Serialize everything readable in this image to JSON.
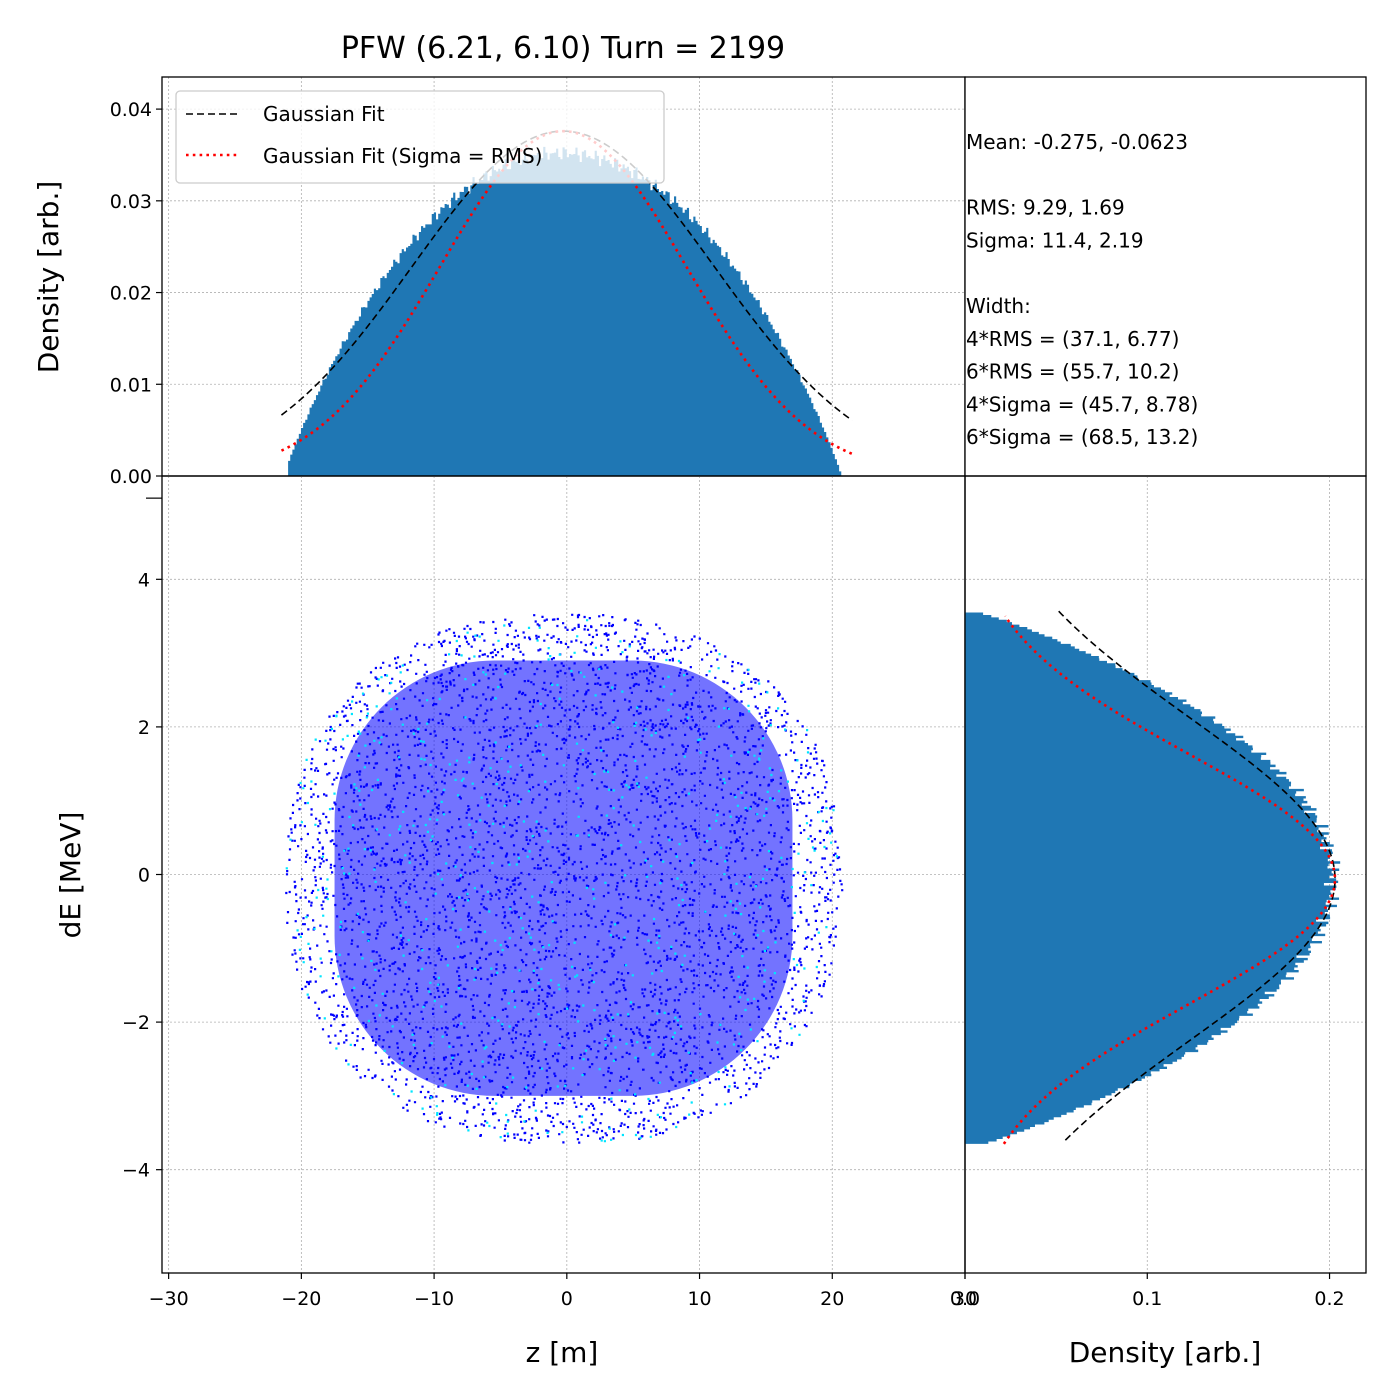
{
  "chart_data": {
    "type": "scatter",
    "title": "PFW (6.21, 6.10) Turn = 2199",
    "colors": {
      "histogram": "#1f77b4",
      "scatter": "#0000ff",
      "scatter_dense": "#00e5ff",
      "gauss_fit": "#000000",
      "gauss_rms": "#ff0000",
      "grid": "#b0b0b0"
    },
    "grid": true,
    "top_hist": {
      "ylabel": "Density [arb.]",
      "ylim": [
        0,
        0.0435
      ],
      "yticks": [
        "0.00",
        "0.01",
        "0.02",
        "0.03",
        "0.04"
      ],
      "ytick_values": [
        0,
        0.01,
        0.02,
        0.03,
        0.04
      ],
      "bins_range": [
        -21,
        21
      ],
      "legend": {
        "placement": "upper-left",
        "entries": [
          "Gaussian Fit",
          "Gaussian Fit (Sigma = RMS)"
        ]
      },
      "fit": {
        "mean": -0.275,
        "sigma": 11.4,
        "amplitude": 0.0376
      },
      "fit_rms": {
        "mean": -0.275,
        "sigma": 9.29,
        "amplitude": 0.0376
      },
      "fit_range": [
        -21.5,
        21.5
      ]
    },
    "main": {
      "xlabel": "z [m]",
      "ylabel": "dE [MeV]",
      "xlim": [
        -30.5,
        30
      ],
      "ylim": [
        -5.4,
        5.4
      ],
      "xticks": [
        "−30",
        "−20",
        "−10",
        "0",
        "10",
        "20",
        "30"
      ],
      "xtick_values": [
        -30,
        -20,
        -10,
        0,
        10,
        20,
        30
      ],
      "yticks": [
        "−4",
        "−2",
        "0",
        "2",
        "4"
      ],
      "ytick_values": [
        -4,
        -2,
        0,
        2,
        4
      ],
      "z_half_width": 21,
      "dE_half_height": 3.6
    },
    "right_hist": {
      "xlabel": "Density [arb.]",
      "xlim": [
        0,
        0.22
      ],
      "xticks": [
        "0.0",
        "0.1",
        "0.2"
      ],
      "xtick_values": [
        0,
        0.1,
        0.2
      ],
      "fit": {
        "mean": -0.0623,
        "sigma": 2.19,
        "amplitude": 0.203
      },
      "fit_rms": {
        "mean": -0.0623,
        "sigma": 1.69,
        "amplitude": 0.203
      },
      "fit_range_black": [
        -3.6,
        3.6
      ],
      "fit_range_red": [
        -3.65,
        3.5
      ]
    },
    "stats": {
      "lines": [
        "Mean: -0.275, -0.0623",
        "",
        "RMS: 9.29, 1.69",
        "Sigma: 11.4, 2.19",
        "",
        "Width:",
        "4*RMS = (37.1, 6.77)",
        "6*RMS = (55.7, 10.2)",
        "4*Sigma = (45.7, 8.78)",
        "6*Sigma = (68.5, 13.2)"
      ]
    }
  }
}
